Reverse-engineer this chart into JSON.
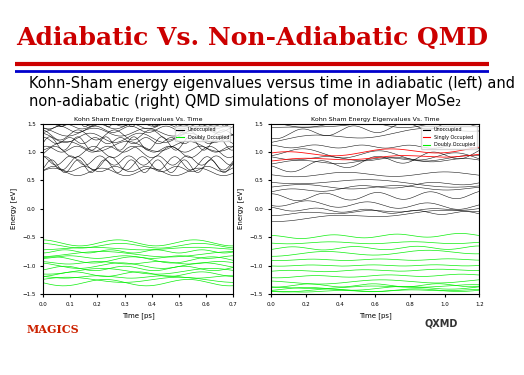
{
  "title": "Adiabatic Vs. Non-Adiabatic QMD",
  "subtitle": "Kohn-Sham energy eigenvalues versus time in adiabatic (left) and\nnon-adiabatic (right) QMD simulations of monolayer MoSe₂",
  "title_color": "#cc0000",
  "title_fontsize": 18,
  "subtitle_fontsize": 10.5,
  "bg_color": "#ffffff",
  "stripe_colors": [
    "#cc0000",
    "#0000cc"
  ],
  "left_plot": {
    "title": "Kohn Sham Energy Eigenvalues Vs. Time",
    "xlabel": "Time [ps]",
    "ylabel": "Energy [eV]",
    "xlim": [
      0,
      0.7
    ],
    "ylim": [
      -1.5,
      1.5
    ],
    "yticks": [
      -1.5,
      -1.0,
      -0.5,
      0,
      0.5,
      1.0,
      1.5
    ],
    "xticks": [
      0,
      0.1,
      0.2,
      0.3,
      0.4,
      0.5,
      0.6,
      0.7
    ],
    "unoccupied_color": "#000000",
    "doubly_occupied_color": "#00ee00",
    "legend_labels": [
      "Unoccupied",
      "Doubly Occupied"
    ],
    "n_unoccupied": 20,
    "n_doubly": 15,
    "unoccupied_base": [
      1.0,
      1.05,
      1.1,
      1.15,
      1.2,
      1.25,
      1.3,
      1.35,
      1.4,
      1.45,
      1.5,
      1.55,
      1.6,
      1.65,
      1.7,
      0.85,
      0.8,
      0.75,
      0.7,
      0.65
    ],
    "doubly_base": [
      -0.6,
      -0.65,
      -0.7,
      -0.75,
      -0.8,
      -0.85,
      -0.9,
      -0.95,
      -1.0,
      -1.05,
      -1.1,
      -1.15,
      -1.2,
      -1.25,
      -1.3
    ]
  },
  "right_plot": {
    "title": "Kohn Sham Energy Eigenvalues Vs. Time",
    "xlabel": "Time [ps]",
    "ylabel": "Energy [eV]",
    "xlim": [
      0,
      1.2
    ],
    "ylim": [
      -1.5,
      1.5
    ],
    "yticks": [
      -1.0,
      -0.5,
      0,
      0.5,
      1.0
    ],
    "xticks": [
      0,
      0.2,
      0.4,
      0.6,
      0.8,
      1.0,
      1.2
    ],
    "unoccupied_color": "#000000",
    "singly_occupied_color": "#ff0000",
    "doubly_occupied_color": "#00ee00",
    "legend_labels": [
      "Unoccupied",
      "Singly Occupied",
      "Doubly Occupied"
    ],
    "n_unoccupied": 18,
    "n_doubly": 14,
    "unoccupied_base": [
      1.5,
      1.4,
      1.3,
      1.2,
      1.1,
      1.0,
      0.9,
      0.8,
      0.7,
      0.6,
      0.5,
      0.4,
      0.3,
      0.2,
      0.1,
      0.0,
      -0.1,
      -0.2
    ],
    "doubly_base": [
      -0.5,
      -0.6,
      -0.7,
      -0.8,
      -0.9,
      -1.0,
      -1.1,
      -1.2,
      -1.3,
      -1.35,
      -1.4,
      -1.42,
      -1.44,
      -1.46
    ]
  }
}
